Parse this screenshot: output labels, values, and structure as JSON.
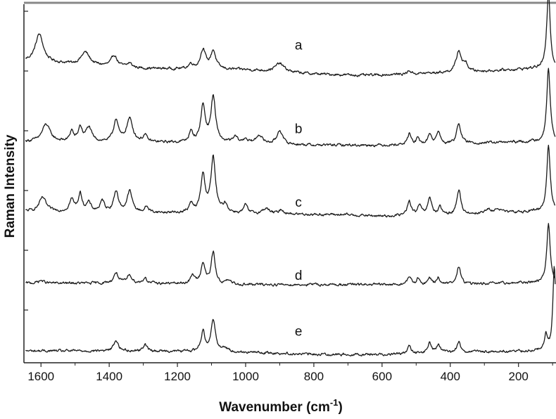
{
  "chart_data": {
    "type": "line",
    "title": "",
    "xlabel": "Wavenumber (cm",
    "xlabel_sup": "-1",
    "xlabel_close": ")",
    "ylabel": "Raman Intensity",
    "xlim": [
      1650,
      90
    ],
    "x_reversed": true,
    "x_ticks": [
      1600,
      1400,
      1200,
      1000,
      800,
      600,
      400,
      200
    ],
    "x_tick_labels": [
      "1600",
      "1400",
      "1200",
      "1000",
      "800",
      "600",
      "400",
      "200"
    ],
    "ylim": [
      0,
      5
    ],
    "y_tick_labels_shown": false,
    "grid": false,
    "legend": "none",
    "line_color": "#1a1a1a",
    "series": [
      {
        "label": "a",
        "offset": 4,
        "label_x": 845,
        "label_y": 4.45,
        "baseline_slope": [
          [
            1640,
            0.2
          ],
          [
            1300,
            0.1
          ],
          [
            1000,
            0.08
          ],
          [
            800,
            0.02
          ],
          [
            650,
            0.0
          ],
          [
            520,
            0.02
          ],
          [
            300,
            0.06
          ],
          [
            150,
            0.1
          ]
        ],
        "peaks": [
          {
            "x": 1605,
            "h": 0.4,
            "w": 14
          },
          {
            "x": 1470,
            "h": 0.18,
            "w": 15
          },
          {
            "x": 1385,
            "h": 0.16,
            "w": 10
          },
          {
            "x": 1340,
            "h": 0.06,
            "w": 8
          },
          {
            "x": 1160,
            "h": 0.07,
            "w": 8
          },
          {
            "x": 1125,
            "h": 0.28,
            "w": 9
          },
          {
            "x": 1095,
            "h": 0.26,
            "w": 9
          },
          {
            "x": 900,
            "h": 0.12,
            "w": 16
          },
          {
            "x": 520,
            "h": 0.05,
            "w": 6
          },
          {
            "x": 375,
            "h": 0.3,
            "w": 9
          },
          {
            "x": 355,
            "h": 0.1,
            "w": 8
          },
          {
            "x": 112,
            "h": 1.1,
            "w": 6
          }
        ]
      },
      {
        "label": "b",
        "offset": 3,
        "label_x": 845,
        "label_y": 3.25,
        "baseline_slope": [
          [
            1640,
            0.05
          ],
          [
            1300,
            0.04
          ],
          [
            1000,
            0.03
          ],
          [
            800,
            0.0
          ],
          [
            600,
            0.0
          ],
          [
            400,
            0.02
          ],
          [
            150,
            0.05
          ]
        ],
        "peaks": [
          {
            "x": 1585,
            "h": 0.25,
            "w": 14
          },
          {
            "x": 1510,
            "h": 0.15,
            "w": 6
          },
          {
            "x": 1485,
            "h": 0.2,
            "w": 7
          },
          {
            "x": 1460,
            "h": 0.2,
            "w": 10
          },
          {
            "x": 1380,
            "h": 0.32,
            "w": 8
          },
          {
            "x": 1340,
            "h": 0.33,
            "w": 11
          },
          {
            "x": 1295,
            "h": 0.09,
            "w": 7
          },
          {
            "x": 1160,
            "h": 0.14,
            "w": 7
          },
          {
            "x": 1125,
            "h": 0.52,
            "w": 8
          },
          {
            "x": 1095,
            "h": 0.65,
            "w": 8
          },
          {
            "x": 1030,
            "h": 0.08,
            "w": 8
          },
          {
            "x": 1000,
            "h": 0.06,
            "w": 6
          },
          {
            "x": 960,
            "h": 0.12,
            "w": 10
          },
          {
            "x": 900,
            "h": 0.2,
            "w": 9
          },
          {
            "x": 520,
            "h": 0.16,
            "w": 6
          },
          {
            "x": 495,
            "h": 0.08,
            "w": 5
          },
          {
            "x": 460,
            "h": 0.15,
            "w": 6
          },
          {
            "x": 435,
            "h": 0.18,
            "w": 6
          },
          {
            "x": 375,
            "h": 0.3,
            "w": 7
          },
          {
            "x": 112,
            "h": 1.05,
            "w": 6
          }
        ]
      },
      {
        "label": "c",
        "offset": 2,
        "label_x": 845,
        "label_y": 2.2,
        "baseline_slope": [
          [
            1640,
            0.05
          ],
          [
            1300,
            0.03
          ],
          [
            1000,
            0.02
          ],
          [
            700,
            0.0
          ],
          [
            600,
            -0.02
          ],
          [
            400,
            0.0
          ],
          [
            150,
            0.05
          ]
        ],
        "peaks": [
          {
            "x": 1595,
            "h": 0.2,
            "w": 12
          },
          {
            "x": 1510,
            "h": 0.17,
            "w": 8
          },
          {
            "x": 1485,
            "h": 0.25,
            "w": 7
          },
          {
            "x": 1460,
            "h": 0.12,
            "w": 8
          },
          {
            "x": 1420,
            "h": 0.15,
            "w": 8
          },
          {
            "x": 1380,
            "h": 0.3,
            "w": 8
          },
          {
            "x": 1340,
            "h": 0.3,
            "w": 9
          },
          {
            "x": 1290,
            "h": 0.08,
            "w": 7
          },
          {
            "x": 1160,
            "h": 0.12,
            "w": 7
          },
          {
            "x": 1125,
            "h": 0.53,
            "w": 8
          },
          {
            "x": 1095,
            "h": 0.78,
            "w": 8
          },
          {
            "x": 1060,
            "h": 0.12,
            "w": 8
          },
          {
            "x": 1000,
            "h": 0.12,
            "w": 6
          },
          {
            "x": 940,
            "h": 0.08,
            "w": 10
          },
          {
            "x": 895,
            "h": 0.06,
            "w": 8
          },
          {
            "x": 520,
            "h": 0.2,
            "w": 7
          },
          {
            "x": 490,
            "h": 0.14,
            "w": 6
          },
          {
            "x": 460,
            "h": 0.24,
            "w": 7
          },
          {
            "x": 430,
            "h": 0.1,
            "w": 6
          },
          {
            "x": 375,
            "h": 0.35,
            "w": 7
          },
          {
            "x": 290,
            "h": 0.05,
            "w": 10
          },
          {
            "x": 260,
            "h": 0.06,
            "w": 10
          },
          {
            "x": 112,
            "h": 0.95,
            "w": 6
          }
        ]
      },
      {
        "label": "d",
        "offset": 1,
        "label_x": 845,
        "label_y": 1.15,
        "baseline_slope": [
          [
            1640,
            0.02
          ],
          [
            1300,
            0.02
          ],
          [
            1000,
            0.0
          ],
          [
            700,
            0.0
          ],
          [
            400,
            0.0
          ],
          [
            150,
            0.03
          ]
        ],
        "peaks": [
          {
            "x": 1600,
            "h": 0.04,
            "w": 10
          },
          {
            "x": 1380,
            "h": 0.15,
            "w": 8
          },
          {
            "x": 1340,
            "h": 0.12,
            "w": 8
          },
          {
            "x": 1295,
            "h": 0.08,
            "w": 6
          },
          {
            "x": 1155,
            "h": 0.12,
            "w": 7
          },
          {
            "x": 1125,
            "h": 0.3,
            "w": 7
          },
          {
            "x": 1095,
            "h": 0.45,
            "w": 7
          },
          {
            "x": 1050,
            "h": 0.05,
            "w": 8
          },
          {
            "x": 520,
            "h": 0.12,
            "w": 6
          },
          {
            "x": 495,
            "h": 0.08,
            "w": 5
          },
          {
            "x": 460,
            "h": 0.1,
            "w": 6
          },
          {
            "x": 435,
            "h": 0.1,
            "w": 6
          },
          {
            "x": 375,
            "h": 0.25,
            "w": 7
          },
          {
            "x": 112,
            "h": 0.85,
            "w": 6
          }
        ]
      },
      {
        "label": "e",
        "offset": 0,
        "label_x": 845,
        "label_y": 0.35,
        "baseline_slope": [
          [
            1640,
            0.05
          ],
          [
            1300,
            0.05
          ],
          [
            1000,
            0.03
          ],
          [
            800,
            0.0
          ],
          [
            600,
            0.0
          ],
          [
            400,
            0.03
          ],
          [
            150,
            0.05
          ]
        ],
        "peaks": [
          {
            "x": 1380,
            "h": 0.15,
            "w": 8
          },
          {
            "x": 1295,
            "h": 0.1,
            "w": 6
          },
          {
            "x": 1125,
            "h": 0.28,
            "w": 7
          },
          {
            "x": 1095,
            "h": 0.45,
            "w": 8
          },
          {
            "x": 1060,
            "h": 0.06,
            "w": 8
          },
          {
            "x": 520,
            "h": 0.1,
            "w": 6
          },
          {
            "x": 460,
            "h": 0.14,
            "w": 6
          },
          {
            "x": 435,
            "h": 0.12,
            "w": 6
          },
          {
            "x": 375,
            "h": 0.15,
            "w": 6
          },
          {
            "x": 120,
            "h": 0.22,
            "w": 5
          },
          {
            "x": 95,
            "h": 1.2,
            "w": 5
          }
        ]
      }
    ]
  }
}
